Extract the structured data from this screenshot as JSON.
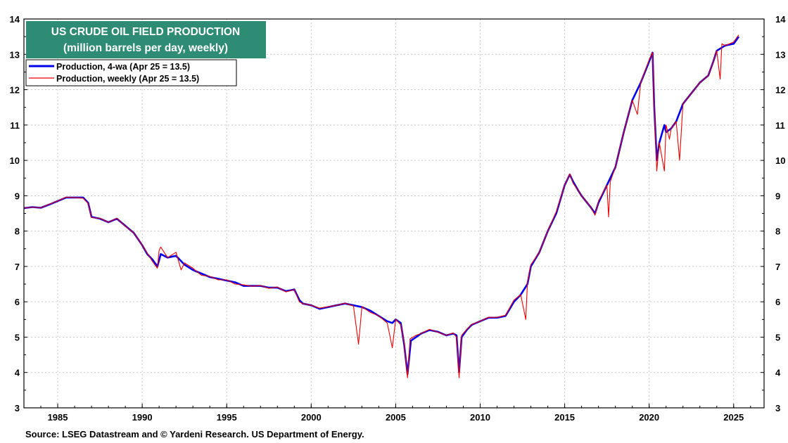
{
  "chart_data": {
    "type": "line",
    "title": "US CRUDE OIL FIELD PRODUCTION",
    "subtitle": "(million barrels per day, weekly)",
    "xlim": [
      1983.0,
      2026.8
    ],
    "ylim": [
      3,
      14
    ],
    "yticks": [
      3,
      4,
      5,
      6,
      7,
      8,
      9,
      10,
      11,
      12,
      13,
      14
    ],
    "xticks": [
      1985,
      1990,
      1995,
      2000,
      2005,
      2010,
      2015,
      2020,
      2025
    ],
    "grid": true,
    "legend_position": "top-left",
    "series": [
      {
        "name": "Production, 4-wa (Apr 25 = 13.5)",
        "color": "#0000ee",
        "x": [
          1983.0,
          1983.5,
          1984.0,
          1984.5,
          1985.0,
          1985.5,
          1986.0,
          1986.5,
          1986.8,
          1987.0,
          1987.5,
          1988.0,
          1988.5,
          1989.0,
          1989.5,
          1990.0,
          1990.3,
          1990.6,
          1990.9,
          1991.1,
          1991.5,
          1992.0,
          1992.5,
          1993.0,
          1993.5,
          1994.0,
          1994.5,
          1995.0,
          1995.5,
          1996.0,
          1996.5,
          1997.0,
          1997.5,
          1998.0,
          1998.5,
          1999.0,
          1999.3,
          1999.5,
          2000.0,
          2000.5,
          2001.0,
          2001.5,
          2002.0,
          2002.5,
          2003.0,
          2003.5,
          2004.0,
          2004.5,
          2004.8,
          2005.0,
          2005.3,
          2005.5,
          2005.7,
          2005.9,
          2006.2,
          2006.5,
          2007.0,
          2007.5,
          2008.0,
          2008.4,
          2008.6,
          2008.75,
          2008.9,
          2009.2,
          2009.5,
          2010.0,
          2010.5,
          2011.0,
          2011.5,
          2012.0,
          2012.4,
          2012.8,
          2013.0,
          2013.5,
          2014.0,
          2014.5,
          2015.0,
          2015.3,
          2015.5,
          2015.8,
          2016.0,
          2016.5,
          2016.8,
          2017.0,
          2017.5,
          2018.0,
          2018.5,
          2019.0,
          2019.5,
          2020.0,
          2020.2,
          2020.3,
          2020.45,
          2020.6,
          2020.9,
          2021.0,
          2021.3,
          2021.6,
          2022.0,
          2022.5,
          2023.0,
          2023.5,
          2023.8,
          2024.0,
          2024.5,
          2025.0,
          2025.3
        ],
        "y": [
          8.65,
          8.68,
          8.66,
          8.75,
          8.85,
          8.95,
          8.95,
          8.95,
          8.8,
          8.4,
          8.35,
          8.25,
          8.35,
          8.15,
          7.95,
          7.6,
          7.35,
          7.2,
          7.0,
          7.35,
          7.25,
          7.3,
          7.05,
          6.9,
          6.8,
          6.7,
          6.65,
          6.6,
          6.55,
          6.45,
          6.45,
          6.45,
          6.4,
          6.4,
          6.3,
          6.35,
          6.05,
          5.95,
          5.9,
          5.8,
          5.85,
          5.9,
          5.95,
          5.9,
          5.85,
          5.75,
          5.6,
          5.45,
          5.4,
          5.5,
          5.4,
          4.8,
          3.95,
          4.9,
          5.0,
          5.1,
          5.2,
          5.15,
          5.05,
          5.1,
          5.05,
          4.0,
          5.0,
          5.2,
          5.35,
          5.45,
          5.55,
          5.55,
          5.6,
          6.0,
          6.2,
          6.5,
          7.0,
          7.4,
          8.0,
          8.5,
          9.3,
          9.6,
          9.4,
          9.15,
          9.0,
          8.7,
          8.5,
          8.8,
          9.3,
          9.8,
          10.8,
          11.7,
          12.2,
          12.8,
          13.05,
          11.5,
          10.0,
          10.5,
          11.0,
          10.8,
          10.9,
          11.1,
          11.6,
          11.9,
          12.2,
          12.4,
          12.8,
          13.1,
          13.25,
          13.3,
          13.5
        ]
      },
      {
        "name": "Production, weekly (Apr 25 = 13.5)",
        "color": "#ee0000",
        "x": [
          1983.0,
          1983.5,
          1984.0,
          1984.5,
          1985.0,
          1985.5,
          1986.0,
          1986.5,
          1986.8,
          1987.0,
          1987.5,
          1988.0,
          1988.5,
          1989.0,
          1989.5,
          1990.0,
          1990.3,
          1990.6,
          1990.9,
          1991.0,
          1991.1,
          1991.5,
          1992.0,
          1992.3,
          1992.5,
          1993.0,
          1993.5,
          1994.0,
          1994.5,
          1995.0,
          1995.5,
          1996.0,
          1996.5,
          1997.0,
          1997.5,
          1998.0,
          1998.5,
          1999.0,
          1999.3,
          1999.5,
          2000.0,
          2000.5,
          2001.0,
          2001.5,
          2002.0,
          2002.5,
          2002.8,
          2003.0,
          2003.5,
          2004.0,
          2004.5,
          2004.8,
          2005.0,
          2005.3,
          2005.5,
          2005.7,
          2005.85,
          2006.2,
          2006.5,
          2007.0,
          2007.5,
          2008.0,
          2008.4,
          2008.6,
          2008.75,
          2008.9,
          2009.2,
          2009.5,
          2010.0,
          2010.5,
          2011.0,
          2011.5,
          2012.0,
          2012.4,
          2012.7,
          2012.8,
          2013.0,
          2013.5,
          2014.0,
          2014.5,
          2015.0,
          2015.3,
          2015.5,
          2015.8,
          2016.0,
          2016.5,
          2016.8,
          2017.0,
          2017.5,
          2017.6,
          2017.7,
          2018.0,
          2018.5,
          2019.0,
          2019.3,
          2019.5,
          2020.0,
          2020.2,
          2020.3,
          2020.45,
          2020.6,
          2020.9,
          2021.0,
          2021.2,
          2021.3,
          2021.6,
          2021.8,
          2022.0,
          2022.5,
          2023.0,
          2023.5,
          2023.8,
          2024.0,
          2024.2,
          2024.3,
          2024.5,
          2025.0,
          2025.3
        ],
        "y": [
          8.65,
          8.68,
          8.66,
          8.76,
          8.85,
          8.96,
          8.95,
          8.93,
          8.78,
          8.38,
          8.36,
          8.25,
          8.36,
          8.14,
          7.95,
          7.6,
          7.38,
          7.15,
          6.95,
          7.45,
          7.55,
          7.25,
          7.4,
          6.9,
          7.1,
          6.95,
          6.75,
          6.72,
          6.62,
          6.62,
          6.5,
          6.48,
          6.44,
          6.46,
          6.38,
          6.42,
          6.28,
          6.35,
          6.0,
          5.95,
          5.9,
          5.82,
          5.86,
          5.9,
          5.96,
          5.88,
          4.8,
          5.86,
          5.7,
          5.6,
          5.4,
          4.7,
          5.5,
          5.35,
          4.85,
          3.85,
          4.95,
          5.05,
          5.1,
          5.22,
          5.14,
          5.05,
          5.12,
          5.0,
          3.85,
          5.05,
          5.22,
          5.36,
          5.45,
          5.56,
          5.56,
          5.62,
          6.05,
          6.2,
          5.5,
          6.55,
          7.05,
          7.4,
          8.0,
          8.55,
          9.3,
          9.62,
          9.35,
          9.15,
          9.0,
          8.7,
          8.45,
          8.85,
          9.3,
          8.4,
          9.4,
          9.8,
          10.8,
          11.7,
          11.3,
          12.2,
          12.85,
          13.05,
          11.5,
          9.7,
          10.5,
          9.7,
          11.0,
          10.6,
          10.9,
          11.1,
          10.0,
          11.6,
          11.9,
          12.2,
          12.4,
          12.8,
          13.1,
          12.3,
          13.3,
          13.25,
          13.35,
          13.55
        ]
      }
    ]
  },
  "source_text": "Source: LSEG Datastream and © Yardeni Research. US Department of Energy."
}
